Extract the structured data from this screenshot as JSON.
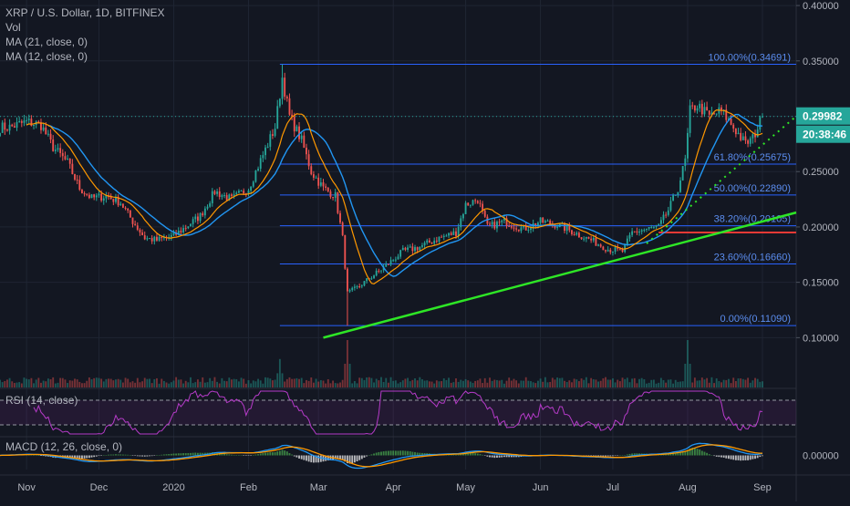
{
  "header": {
    "symbol": "XRP / U.S. Dollar, 1D, BITFINEX",
    "vol": "Vol",
    "ma21": "MA (21, close, 0)",
    "ma12": "MA (12, close, 0)"
  },
  "rsi_label": "RSI (14, close)",
  "macd_label": "MACD (12, 26, close, 0)",
  "price_badge": "0.29982",
  "countdown_badge": "20:38:46",
  "colors": {
    "background": "#131722",
    "up": "#26a69a",
    "down": "#ef5350",
    "fib": "#2962ff",
    "trend": "#2ee626",
    "ma21": "#2196f3",
    "ma12": "#ff9800",
    "rsi": "#9c27b0",
    "hline": "#e53935"
  },
  "chart_data": {
    "type": "candlestick",
    "y_axis_ticks": [
      "0.40000",
      "0.35000",
      "0.30000",
      "0.25000",
      "0.20000",
      "0.15000",
      "0.10000"
    ],
    "macd_axis_tick": "0.00000",
    "x_axis_ticks": [
      "Nov",
      "Dec",
      "2020",
      "Feb",
      "Mar",
      "Apr",
      "May",
      "Jun",
      "Jul",
      "Aug",
      "Sep"
    ],
    "fib_levels": [
      {
        "label": "100.00%(0.34691)",
        "value": 0.34691
      },
      {
        "label": "61.80%(0.25675)",
        "value": 0.25675
      },
      {
        "label": "50.00%(0.22890)",
        "value": 0.2289
      },
      {
        "label": "38.20%(0.20105)",
        "value": 0.20105
      },
      {
        "label": "23.60%(0.16660)",
        "value": 0.1666
      },
      {
        "label": "0.00%(0.11090)",
        "value": 0.1109
      }
    ],
    "horizontal_line": 0.195,
    "last_price": 0.29982,
    "price_path": [
      [
        "2019-10-25",
        0.29
      ],
      [
        "2019-11-01",
        0.295
      ],
      [
        "2019-11-07",
        0.292
      ],
      [
        "2019-11-12",
        0.272
      ],
      [
        "2019-11-18",
        0.258
      ],
      [
        "2019-11-23",
        0.235
      ],
      [
        "2019-11-28",
        0.226
      ],
      [
        "2019-12-04",
        0.228
      ],
      [
        "2019-12-10",
        0.222
      ],
      [
        "2019-12-15",
        0.205
      ],
      [
        "2019-12-20",
        0.19
      ],
      [
        "2019-12-25",
        0.188
      ],
      [
        "2020-01-01",
        0.192
      ],
      [
        "2020-01-06",
        0.2
      ],
      [
        "2020-01-12",
        0.21
      ],
      [
        "2020-01-18",
        0.232
      ],
      [
        "2020-01-25",
        0.225
      ],
      [
        "2020-02-01",
        0.235
      ],
      [
        "2020-02-07",
        0.265
      ],
      [
        "2020-02-12",
        0.29
      ],
      [
        "2020-02-15",
        0.335
      ],
      [
        "2020-02-18",
        0.3
      ],
      [
        "2020-02-23",
        0.278
      ],
      [
        "2020-02-27",
        0.25
      ],
      [
        "2020-03-03",
        0.235
      ],
      [
        "2020-03-08",
        0.228
      ],
      [
        "2020-03-11",
        0.19
      ],
      [
        "2020-03-13",
        0.14
      ],
      [
        "2020-03-17",
        0.145
      ],
      [
        "2020-03-23",
        0.155
      ],
      [
        "2020-03-29",
        0.165
      ],
      [
        "2020-04-05",
        0.178
      ],
      [
        "2020-04-12",
        0.182
      ],
      [
        "2020-04-20",
        0.19
      ],
      [
        "2020-04-27",
        0.195
      ],
      [
        "2020-05-01",
        0.22
      ],
      [
        "2020-05-06",
        0.225
      ],
      [
        "2020-05-10",
        0.2
      ],
      [
        "2020-05-17",
        0.205
      ],
      [
        "2020-05-25",
        0.198
      ],
      [
        "2020-06-01",
        0.205
      ],
      [
        "2020-06-08",
        0.202
      ],
      [
        "2020-06-15",
        0.195
      ],
      [
        "2020-06-22",
        0.188
      ],
      [
        "2020-06-29",
        0.18
      ],
      [
        "2020-07-05",
        0.178
      ],
      [
        "2020-07-09",
        0.195
      ],
      [
        "2020-07-15",
        0.198
      ],
      [
        "2020-07-20",
        0.2
      ],
      [
        "2020-07-24",
        0.215
      ],
      [
        "2020-07-28",
        0.235
      ],
      [
        "2020-07-31",
        0.26
      ],
      [
        "2020-08-02",
        0.305
      ],
      [
        "2020-08-05",
        0.31
      ],
      [
        "2020-08-10",
        0.3
      ],
      [
        "2020-08-15",
        0.305
      ],
      [
        "2020-08-20",
        0.29
      ],
      [
        "2020-08-25",
        0.275
      ],
      [
        "2020-08-28",
        0.28
      ],
      [
        "2020-09-01",
        0.29982
      ]
    ],
    "volume_spikes": [
      [
        "2020-02-14",
        0.6
      ],
      [
        "2020-03-13",
        1.0
      ],
      [
        "2020-08-01",
        1.0
      ]
    ],
    "trendlines": [
      {
        "style": "solid",
        "from": [
          "2020-03-03",
          0.1
        ],
        "to": [
          "2020-09-15",
          0.213
        ]
      },
      {
        "style": "dotted",
        "from": [
          "2020-07-15",
          0.185
        ],
        "to": [
          "2020-09-15",
          0.3
        ]
      }
    ],
    "rsi_bands": [
      70,
      30
    ],
    "x_range": [
      "2019-10-21",
      "2020-09-15"
    ],
    "y_range": [
      0.055,
      0.405
    ]
  }
}
